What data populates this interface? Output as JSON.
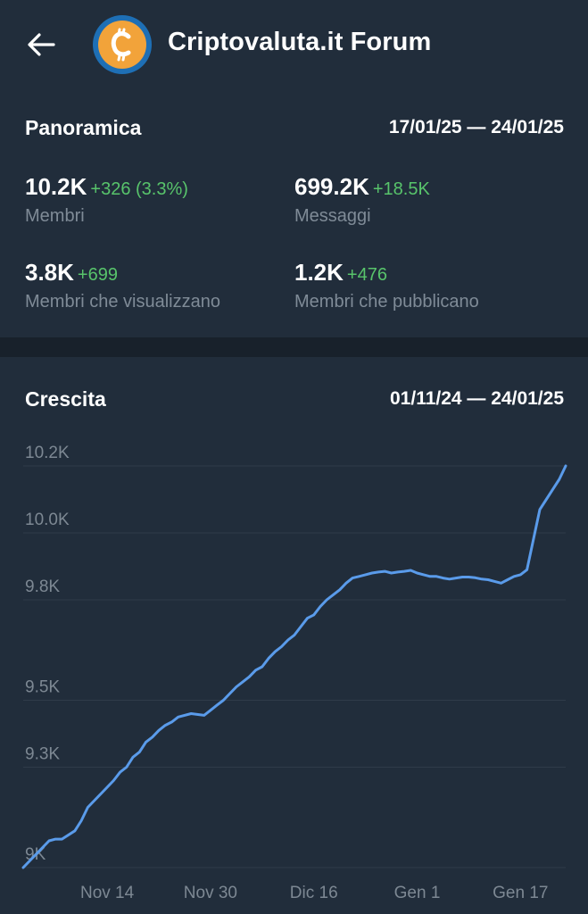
{
  "header": {
    "title": "Criptovaluta.it Forum",
    "back_icon": "arrow-left-icon",
    "avatar_icon": "bitcoin-logo-icon"
  },
  "overview": {
    "title": "Panoramica",
    "range": "17/01/25 — 24/01/25",
    "stats": [
      {
        "value": "10.2K",
        "delta": "+326 (3.3%)",
        "label": "Membri"
      },
      {
        "value": "699.2K",
        "delta": "+18.5K",
        "label": "Messaggi"
      },
      {
        "value": "3.8K",
        "delta": "+699",
        "label": "Membri che visualizzano"
      },
      {
        "value": "1.2K",
        "delta": "+476",
        "label": "Membri che pubblicano"
      }
    ]
  },
  "growth": {
    "title": "Crescita",
    "range": "01/11/24 — 24/01/25"
  },
  "colors": {
    "background": "#212d3b",
    "separator": "#18212b",
    "positive": "#58c46b",
    "muted": "#7f8b97",
    "line": "#5a9bea"
  },
  "chart_data": {
    "type": "line",
    "y_tick_labels": [
      "10.2K",
      "10.0K",
      "9.8K",
      "9.5K",
      "9.3K",
      "9K"
    ],
    "y_tick_values": [
      10200,
      10000,
      9800,
      9500,
      9300,
      9000
    ],
    "x_tick_labels": [
      "Nov 14",
      "Nov 30",
      "Dic 16",
      "Gen 1",
      "Gen 17"
    ],
    "x_tick_days": [
      13,
      29,
      45,
      61,
      77
    ],
    "ylim": [
      8980,
      10220
    ],
    "xlim": [
      0,
      84
    ],
    "grid": true,
    "series": [
      {
        "x": [
          0,
          2,
          4,
          5,
          6,
          8,
          9,
          10,
          12,
          13,
          14,
          15,
          16,
          17,
          18,
          19,
          20,
          21,
          22,
          23,
          24,
          26,
          28,
          29,
          30,
          31,
          32,
          33,
          34,
          35,
          36,
          37,
          38,
          39,
          40,
          41,
          42,
          43,
          44,
          45,
          46,
          47,
          48,
          49,
          50,
          51,
          52,
          53,
          54,
          55,
          56,
          57,
          58,
          59,
          60,
          61,
          62,
          63,
          64,
          65,
          66,
          67,
          68,
          69,
          70,
          71,
          72,
          73,
          74,
          75,
          76,
          77,
          78,
          79,
          80,
          81,
          82,
          83,
          84
        ],
        "y": [
          9000,
          9040,
          9080,
          9085,
          9085,
          9110,
          9140,
          9180,
          9220,
          9240,
          9260,
          9285,
          9300,
          9330,
          9345,
          9375,
          9390,
          9410,
          9425,
          9435,
          9450,
          9460,
          9455,
          9470,
          9485,
          9500,
          9520,
          9540,
          9555,
          9570,
          9590,
          9600,
          9625,
          9645,
          9660,
          9680,
          9695,
          9720,
          9745,
          9755,
          9780,
          9800,
          9815,
          9830,
          9850,
          9865,
          9870,
          9875,
          9880,
          9883,
          9885,
          9880,
          9883,
          9885,
          9888,
          9880,
          9875,
          9870,
          9870,
          9865,
          9862,
          9865,
          9868,
          9868,
          9866,
          9862,
          9860,
          9855,
          9850,
          9860,
          9870,
          9875,
          9890,
          9980,
          10070,
          10100,
          10130,
          10160,
          10200
        ]
      }
    ]
  }
}
